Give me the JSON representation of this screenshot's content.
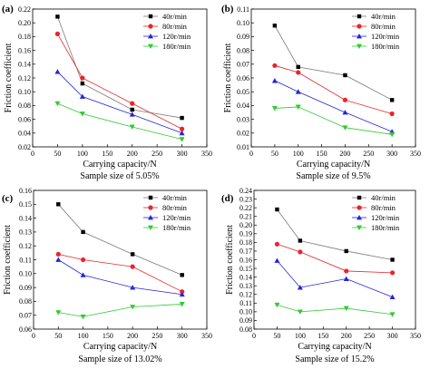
{
  "chart_data": [
    {
      "type": "line",
      "panel_label": "(a)",
      "caption": "Sample size of 5.05%",
      "xlabel": "Carrying capacity/N",
      "ylabel": "Friction coefficient",
      "x": [
        50,
        100,
        200,
        300
      ],
      "xlim": [
        0,
        350
      ],
      "xticks": [
        0,
        50,
        100,
        150,
        200,
        250,
        300,
        350
      ],
      "ylim": [
        0.02,
        0.22
      ],
      "yticks": [
        0.02,
        0.04,
        0.06,
        0.08,
        0.1,
        0.12,
        0.14,
        0.16,
        0.18,
        0.2,
        0.22
      ],
      "ytick_labels": [
        "0.02",
        "0.04",
        "0.06",
        "0.08",
        "0.10",
        "0.12",
        "0.14",
        "0.16",
        "0.18",
        "0.20",
        "0.22"
      ],
      "legend_position": "top-right",
      "series": [
        {
          "name": "40r/min",
          "values": [
            0.209,
            0.112,
            0.074,
            0.062
          ]
        },
        {
          "name": "80r/min",
          "values": [
            0.184,
            0.12,
            0.083,
            0.046
          ]
        },
        {
          "name": "120r/min",
          "values": [
            0.129,
            0.093,
            0.067,
            0.04
          ]
        },
        {
          "name": "180r/min",
          "values": [
            0.083,
            0.068,
            0.049,
            0.031
          ]
        }
      ]
    },
    {
      "type": "line",
      "panel_label": "(b)",
      "caption": "Sample size of 9.5%",
      "xlabel": "Carrying capacity/N",
      "ylabel": "Friction coefficient",
      "x": [
        50,
        100,
        200,
        300
      ],
      "xlim": [
        0,
        350
      ],
      "xticks": [
        0,
        50,
        100,
        150,
        200,
        250,
        300,
        350
      ],
      "ylim": [
        0.01,
        0.11
      ],
      "yticks": [
        0.01,
        0.02,
        0.03,
        0.04,
        0.05,
        0.06,
        0.07,
        0.08,
        0.09,
        0.1,
        0.11
      ],
      "ytick_labels": [
        "0.01",
        "0.02",
        "0.03",
        "0.04",
        "0.05",
        "0.06",
        "0.07",
        "0.08",
        "0.09",
        "0.10",
        "0.11"
      ],
      "legend_position": "top-right",
      "series": [
        {
          "name": "40r/min",
          "values": [
            0.098,
            0.068,
            0.062,
            0.044
          ]
        },
        {
          "name": "80r/min",
          "values": [
            0.069,
            0.064,
            0.044,
            0.034
          ]
        },
        {
          "name": "120r/min",
          "values": [
            0.058,
            0.05,
            0.035,
            0.021
          ]
        },
        {
          "name": "180r/min",
          "values": [
            0.038,
            0.039,
            0.024,
            0.019
          ]
        }
      ]
    },
    {
      "type": "line",
      "panel_label": "(c)",
      "caption": "Sample size of 13.02%",
      "xlabel": "Carrying capacity/N",
      "ylabel": "Friction coefficient",
      "x": [
        50,
        100,
        200,
        300
      ],
      "xlim": [
        0,
        350
      ],
      "xticks": [
        0,
        50,
        100,
        150,
        200,
        250,
        300,
        350
      ],
      "ylim": [
        0.06,
        0.16
      ],
      "yticks": [
        0.06,
        0.07,
        0.08,
        0.09,
        0.1,
        0.11,
        0.12,
        0.13,
        0.14,
        0.15,
        0.16
      ],
      "ytick_labels": [
        "0.06",
        "0.07",
        "0.08",
        "0.09",
        "0.10",
        "0.11",
        "0.12",
        "0.13",
        "0.14",
        "0.15",
        "0.16"
      ],
      "legend_position": "top-right",
      "series": [
        {
          "name": "40r/min",
          "values": [
            0.15,
            0.13,
            0.114,
            0.099
          ]
        },
        {
          "name": "80r/min",
          "values": [
            0.114,
            0.11,
            0.105,
            0.087
          ]
        },
        {
          "name": "120r/min",
          "values": [
            0.11,
            0.099,
            0.09,
            0.085
          ]
        },
        {
          "name": "180r/min",
          "values": [
            0.072,
            0.069,
            0.076,
            0.078
          ]
        }
      ]
    },
    {
      "type": "line",
      "panel_label": "(d)",
      "caption": "Sample size of 15.2%",
      "xlabel": "Carrying capacity/N",
      "ylabel": "Friction coefficient",
      "x": [
        50,
        100,
        200,
        300
      ],
      "xlim": [
        0,
        350
      ],
      "xticks": [
        0,
        50,
        100,
        150,
        200,
        250,
        300,
        350
      ],
      "ylim": [
        0.08,
        0.24
      ],
      "yticks": [
        0.08,
        0.09,
        0.1,
        0.11,
        0.12,
        0.13,
        0.14,
        0.15,
        0.16,
        0.17,
        0.18,
        0.19,
        0.2,
        0.21,
        0.22,
        0.23,
        0.24
      ],
      "ytick_labels": [
        "0.08",
        "0.09",
        "0.10",
        "0.11",
        "0.12",
        "0.13",
        "0.14",
        "0.15",
        "0.16",
        "0.17",
        "0.18",
        "0.19",
        "0.20",
        "0.21",
        "0.22",
        "0.23",
        "0.24"
      ],
      "legend_position": "top-right",
      "series": [
        {
          "name": "40r/min",
          "values": [
            0.218,
            0.182,
            0.17,
            0.16
          ]
        },
        {
          "name": "80r/min",
          "values": [
            0.178,
            0.169,
            0.147,
            0.145
          ]
        },
        {
          "name": "120r/min",
          "values": [
            0.159,
            0.128,
            0.138,
            0.117
          ]
        },
        {
          "name": "180r/min",
          "values": [
            0.108,
            0.1,
            0.104,
            0.097
          ]
        }
      ]
    }
  ],
  "series_styles": [
    {
      "marker": "square",
      "color": "#000000",
      "line_color": "#7a7a7a"
    },
    {
      "marker": "circle",
      "color": "#e8262a",
      "line_color": "#e8262a"
    },
    {
      "marker": "triangle-up",
      "color": "#2525d8",
      "line_color": "#2525d8"
    },
    {
      "marker": "triangle-down",
      "color": "#34c934",
      "line_color": "#34c934"
    }
  ]
}
